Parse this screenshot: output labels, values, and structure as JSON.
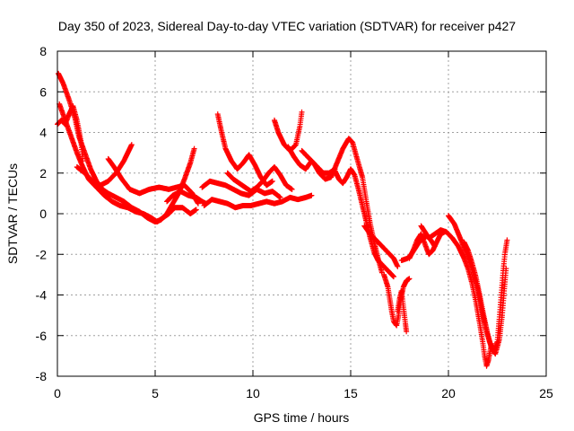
{
  "chart_data": {
    "type": "scatter",
    "title": "Day 350 of 2023, Sidereal Day-to-day VTEC variation (SDTVAR) for receiver p427",
    "xlabel": "GPS time / hours",
    "ylabel": "SDTVAR / TECUs",
    "xlim": [
      0,
      25
    ],
    "ylim": [
      -8,
      8
    ],
    "xticks": [
      0,
      5,
      10,
      15,
      20,
      25
    ],
    "yticks": [
      -8,
      -6,
      -4,
      -2,
      0,
      2,
      4,
      6,
      8
    ],
    "grid": true,
    "marker": "+",
    "series": [
      {
        "name": "p427",
        "color": "#ff0000",
        "tracks": [
          [
            [
              0.05,
              6.9
            ],
            [
              0.3,
              6.4
            ],
            [
              0.6,
              5.6
            ],
            [
              0.9,
              4.7
            ],
            [
              1.1,
              3.8
            ],
            [
              1.4,
              3.0
            ],
            [
              1.7,
              2.2
            ],
            [
              2.0,
              1.6
            ],
            [
              2.3,
              1.2
            ],
            [
              2.6,
              1.0
            ],
            [
              3.0,
              0.8
            ],
            [
              3.4,
              0.6
            ],
            [
              3.8,
              0.3
            ],
            [
              4.2,
              0.1
            ],
            [
              4.6,
              -0.2
            ],
            [
              5.0,
              -0.4
            ],
            [
              5.3,
              -0.3
            ],
            [
              5.6,
              0.0
            ],
            [
              5.9,
              0.5
            ],
            [
              6.2,
              1.0
            ],
            [
              6.5,
              1.7
            ],
            [
              6.8,
              2.5
            ],
            [
              7.0,
              3.2
            ]
          ],
          [
            [
              0.1,
              5.4
            ],
            [
              0.4,
              4.6
            ],
            [
              0.7,
              3.8
            ],
            [
              1.0,
              3.0
            ],
            [
              1.3,
              2.3
            ],
            [
              1.6,
              1.7
            ],
            [
              2.0,
              1.3
            ],
            [
              2.4,
              0.9
            ],
            [
              2.8,
              0.6
            ],
            [
              3.2,
              0.4
            ],
            [
              3.6,
              0.3
            ],
            [
              4.0,
              0.1
            ],
            [
              4.4,
              0.0
            ],
            [
              4.8,
              -0.2
            ],
            [
              5.1,
              -0.4
            ],
            [
              5.4,
              -0.2
            ],
            [
              5.7,
              0.0
            ],
            [
              6.0,
              0.3
            ],
            [
              6.4,
              0.3
            ],
            [
              6.8,
              0.0
            ],
            [
              7.1,
              0.2
            ]
          ],
          [
            [
              1.0,
              2.3
            ],
            [
              1.4,
              2.0
            ],
            [
              1.8,
              1.6
            ],
            [
              2.2,
              1.4
            ],
            [
              2.6,
              1.6
            ],
            [
              3.0,
              2.0
            ],
            [
              3.4,
              2.6
            ],
            [
              3.6,
              3.0
            ],
            [
              3.8,
              3.4
            ]
          ],
          [
            [
              2.6,
              2.7
            ],
            [
              2.9,
              2.3
            ],
            [
              3.3,
              1.7
            ],
            [
              3.7,
              1.2
            ],
            [
              4.2,
              1.0
            ],
            [
              4.7,
              1.2
            ],
            [
              5.2,
              1.3
            ],
            [
              5.7,
              1.2
            ],
            [
              6.1,
              1.3
            ],
            [
              6.5,
              1.4
            ],
            [
              6.9,
              1.0
            ],
            [
              7.2,
              0.5
            ]
          ],
          [
            [
              5.6,
              0.6
            ],
            [
              5.9,
              0.9
            ],
            [
              6.3,
              1.1
            ],
            [
              6.7,
              0.9
            ],
            [
              7.1,
              0.8
            ],
            [
              7.4,
              0.6
            ],
            [
              7.6,
              0.5
            ]
          ],
          [
            [
              7.4,
              1.3
            ],
            [
              7.8,
              1.6
            ],
            [
              8.2,
              1.5
            ],
            [
              8.6,
              1.4
            ],
            [
              9.0,
              1.2
            ],
            [
              9.4,
              1.0
            ],
            [
              9.8,
              0.9
            ],
            [
              10.2,
              1.2
            ],
            [
              10.6,
              1.0
            ],
            [
              11.0,
              1.1
            ],
            [
              11.4,
              0.8
            ]
          ],
          [
            [
              7.5,
              0.4
            ],
            [
              7.9,
              0.7
            ],
            [
              8.3,
              0.6
            ],
            [
              8.7,
              0.5
            ],
            [
              9.1,
              0.3
            ],
            [
              9.5,
              0.4
            ],
            [
              9.9,
              0.4
            ],
            [
              10.3,
              0.5
            ],
            [
              10.7,
              0.6
            ],
            [
              11.1,
              0.5
            ],
            [
              11.5,
              0.6
            ],
            [
              11.9,
              0.8
            ],
            [
              12.3,
              0.7
            ],
            [
              12.7,
              0.8
            ],
            [
              13.0,
              0.9
            ]
          ],
          [
            [
              8.2,
              4.9
            ],
            [
              8.4,
              4.0
            ],
            [
              8.6,
              3.2
            ],
            [
              8.9,
              2.6
            ],
            [
              9.2,
              2.2
            ],
            [
              9.5,
              2.5
            ],
            [
              9.8,
              2.9
            ],
            [
              10.1,
              2.4
            ],
            [
              10.4,
              1.8
            ],
            [
              10.7,
              1.4
            ],
            [
              11.0,
              1.6
            ]
          ],
          [
            [
              8.7,
              2.0
            ],
            [
              9.0,
              1.7
            ],
            [
              9.3,
              1.5
            ],
            [
              9.6,
              1.3
            ],
            [
              9.9,
              1.1
            ],
            [
              10.2,
              1.3
            ],
            [
              10.5,
              1.6
            ],
            [
              10.8,
              2.0
            ],
            [
              11.1,
              2.3
            ],
            [
              11.4,
              1.9
            ],
            [
              11.7,
              1.4
            ],
            [
              12.0,
              1.2
            ]
          ],
          [
            [
              11.1,
              4.6
            ],
            [
              11.3,
              4.0
            ],
            [
              11.6,
              3.4
            ],
            [
              11.9,
              3.1
            ],
            [
              12.2,
              3.4
            ],
            [
              12.4,
              4.3
            ],
            [
              12.5,
              5.0
            ]
          ],
          [
            [
              11.8,
              3.3
            ],
            [
              12.1,
              2.8
            ],
            [
              12.4,
              2.4
            ],
            [
              12.7,
              2.2
            ],
            [
              13.0,
              2.6
            ],
            [
              13.3,
              2.3
            ],
            [
              13.6,
              2.0
            ],
            [
              13.9,
              2.0
            ],
            [
              14.2,
              2.2
            ]
          ],
          [
            [
              12.5,
              3.1
            ],
            [
              12.8,
              2.8
            ],
            [
              13.1,
              2.5
            ],
            [
              13.4,
              2.0
            ],
            [
              13.7,
              1.7
            ],
            [
              14.0,
              1.8
            ],
            [
              14.3,
              2.5
            ],
            [
              14.6,
              3.2
            ],
            [
              14.9,
              3.7
            ],
            [
              15.1,
              3.5
            ],
            [
              15.3,
              2.8
            ],
            [
              15.6,
              1.8
            ],
            [
              15.8,
              0.6
            ],
            [
              16.0,
              -0.5
            ],
            [
              16.2,
              -1.4
            ],
            [
              16.4,
              -2.2
            ],
            [
              16.6,
              -2.9
            ]
          ],
          [
            [
              14.2,
              2.1
            ],
            [
              14.4,
              1.7
            ],
            [
              14.6,
              1.5
            ],
            [
              14.8,
              1.8
            ],
            [
              15.0,
              2.2
            ],
            [
              15.2,
              1.9
            ],
            [
              15.4,
              1.2
            ],
            [
              15.6,
              0.4
            ],
            [
              15.8,
              -0.4
            ],
            [
              16.0,
              -1.2
            ],
            [
              16.2,
              -1.9
            ],
            [
              16.4,
              -2.3
            ],
            [
              16.7,
              -2.6
            ],
            [
              17.0,
              -2.9
            ],
            [
              17.2,
              -3.1
            ]
          ],
          [
            [
              15.7,
              -0.6
            ],
            [
              16.0,
              -1.0
            ],
            [
              16.3,
              -1.3
            ],
            [
              16.6,
              -1.6
            ],
            [
              16.9,
              -1.9
            ],
            [
              17.2,
              -2.2
            ],
            [
              17.4,
              -2.6
            ]
          ],
          [
            [
              16.7,
              -3.0
            ],
            [
              16.9,
              -3.6
            ],
            [
              17.0,
              -4.2
            ],
            [
              17.1,
              -4.8
            ],
            [
              17.2,
              -5.3
            ],
            [
              17.35,
              -5.5
            ],
            [
              17.45,
              -5.0
            ],
            [
              17.55,
              -4.3
            ],
            [
              17.7,
              -3.6
            ],
            [
              17.85,
              -3.3
            ],
            [
              18.0,
              -3.2
            ]
          ],
          [
            [
              17.4,
              -4.8
            ],
            [
              17.5,
              -4.2
            ],
            [
              17.6,
              -3.8
            ],
            [
              17.7,
              -4.6
            ],
            [
              17.8,
              -5.4
            ],
            [
              17.85,
              -5.8
            ]
          ],
          [
            [
              17.6,
              -2.3
            ],
            [
              17.9,
              -2.2
            ],
            [
              18.1,
              -2.0
            ],
            [
              18.3,
              -1.7
            ],
            [
              18.5,
              -1.4
            ],
            [
              18.7,
              -1.2
            ],
            [
              18.9,
              -1.1
            ],
            [
              19.1,
              -1.3
            ],
            [
              19.3,
              -1.6
            ]
          ],
          [
            [
              18.0,
              -2.2
            ],
            [
              18.2,
              -1.8
            ],
            [
              18.4,
              -1.3
            ],
            [
              18.6,
              -1.0
            ],
            [
              18.8,
              -1.5
            ],
            [
              19.0,
              -2.0
            ],
            [
              19.2,
              -1.8
            ],
            [
              19.4,
              -1.4
            ],
            [
              19.6,
              -1.0
            ],
            [
              19.8,
              -0.9
            ]
          ],
          [
            [
              18.6,
              -0.6
            ],
            [
              18.8,
              -0.9
            ],
            [
              19.0,
              -1.2
            ],
            [
              19.3,
              -1.0
            ],
            [
              19.6,
              -0.8
            ],
            [
              19.9,
              -0.9
            ],
            [
              20.2,
              -1.2
            ],
            [
              20.5,
              -1.6
            ],
            [
              20.8,
              -2.2
            ],
            [
              21.0,
              -2.7
            ],
            [
              21.2,
              -3.4
            ],
            [
              21.4,
              -4.3
            ],
            [
              21.6,
              -5.4
            ],
            [
              21.75,
              -6.3
            ],
            [
              21.85,
              -7.0
            ],
            [
              21.95,
              -7.5
            ],
            [
              22.05,
              -7.2
            ],
            [
              22.2,
              -6.4
            ]
          ],
          [
            [
              20.0,
              -0.1
            ],
            [
              20.3,
              -0.5
            ],
            [
              20.6,
              -1.2
            ],
            [
              20.9,
              -1.9
            ],
            [
              21.2,
              -2.7
            ],
            [
              21.5,
              -3.7
            ],
            [
              21.7,
              -4.7
            ],
            [
              21.9,
              -5.6
            ],
            [
              22.1,
              -6.3
            ],
            [
              22.3,
              -6.8
            ],
            [
              22.5,
              -6.3
            ],
            [
              22.6,
              -5.2
            ],
            [
              22.7,
              -4.0
            ],
            [
              22.8,
              -2.8
            ],
            [
              22.9,
              -1.9
            ],
            [
              23.0,
              -1.3
            ]
          ],
          [
            [
              20.8,
              -1.4
            ],
            [
              21.0,
              -1.8
            ],
            [
              21.2,
              -2.4
            ],
            [
              21.4,
              -3.1
            ],
            [
              21.6,
              -4.0
            ],
            [
              21.8,
              -5.0
            ],
            [
              22.0,
              -5.9
            ],
            [
              22.2,
              -6.6
            ],
            [
              22.4,
              -6.9
            ],
            [
              22.6,
              -6.2
            ],
            [
              22.75,
              -5.0
            ],
            [
              22.85,
              -3.8
            ],
            [
              22.95,
              -2.7
            ]
          ],
          [
            [
              0.0,
              4.4
            ],
            [
              0.2,
              4.6
            ],
            [
              0.4,
              4.4
            ],
            [
              0.6,
              4.9
            ],
            [
              0.8,
              5.3
            ],
            [
              1.0,
              4.6
            ],
            [
              1.2,
              3.6
            ],
            [
              1.3,
              2.6
            ]
          ]
        ]
      }
    ]
  }
}
